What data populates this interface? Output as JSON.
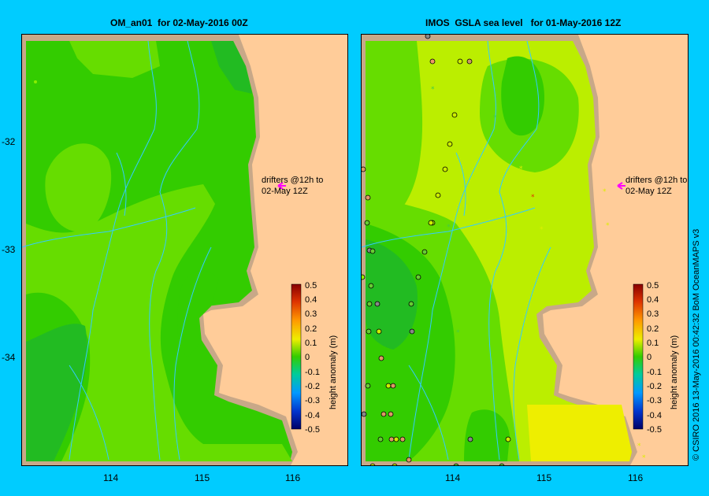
{
  "left_panel": {
    "title": "OM_an01  for 02-May-2016 00Z",
    "drifter_label_line1": "drifters @12h to",
    "drifter_label_line2": "02-May 12Z"
  },
  "right_panel": {
    "title": "IMOS  GSLA sea level   for 01-May-2016 12Z",
    "drifter_label_line1": "drifters @12h to",
    "drifter_label_line2": "02-May 12Z"
  },
  "y_axis_labels": [
    "-32",
    "-33",
    "-34"
  ],
  "x_axis_labels": [
    "114",
    "115",
    "116",
    "114",
    "115",
    "116"
  ],
  "colorbar": {
    "label": "height anomaly  (m)",
    "ticks": [
      "0.5",
      "0.4",
      "0.3",
      "0.2",
      "0.1",
      "0",
      "-0.1",
      "-0.2",
      "-0.3",
      "-0.4",
      "-0.5"
    ]
  },
  "credit": "© CSIRO 2016   13-May-2016 00:42:32  BoM OceanMAPS v3",
  "colors": {
    "background": "#00ccff",
    "land": "#ffcc99",
    "coast": "#c8a888",
    "green_mid": "#33cc00",
    "green_light": "#66dd00",
    "green_dark": "#22bb22",
    "yellow_green": "#bbee00",
    "yellow": "#eeee00",
    "drifter_arrow": "#ff00ff"
  }
}
